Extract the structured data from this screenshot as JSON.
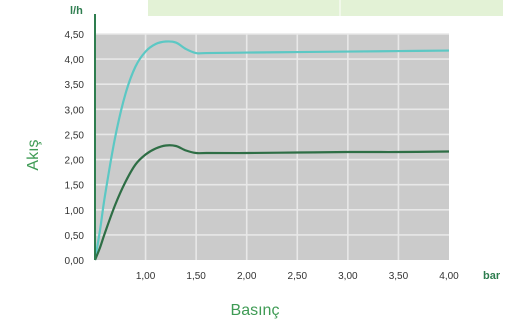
{
  "chart_data": {
    "type": "line",
    "xlabel": "Basınç",
    "ylabel": "Akış",
    "x_unit": "bar",
    "y_unit": "l/h",
    "xlim": [
      0.5,
      4.0
    ],
    "ylim": [
      0,
      4.5
    ],
    "x_ticks": [
      1.0,
      1.5,
      2.0,
      2.5,
      3.0,
      3.5,
      4.0
    ],
    "x_tick_labels": [
      "1,00",
      "1,50",
      "2,00",
      "2,50",
      "3,00",
      "3,50",
      "4,00"
    ],
    "y_ticks": [
      0,
      0.5,
      1.0,
      1.5,
      2.0,
      2.5,
      3.0,
      3.5,
      4.0,
      4.5
    ],
    "y_tick_labels": [
      "0,00",
      "0,50",
      "1,00",
      "1,50",
      "2,00",
      "2,50",
      "3,00",
      "3,50",
      "4,00",
      "4,50"
    ],
    "grid": true,
    "plot_background": "#cbcbcb",
    "grid_color": "#e8e8e8",
    "axis_color": "#2e7d4f",
    "series": [
      {
        "color": "#5cc8c4",
        "x": [
          0.5,
          0.55,
          0.6,
          0.7,
          0.8,
          0.9,
          1.0,
          1.1,
          1.2,
          1.3,
          1.4,
          1.5,
          1.6,
          2.0,
          2.5,
          3.0,
          3.5,
          4.0
        ],
        "y": [
          0.0,
          0.6,
          1.3,
          2.45,
          3.3,
          3.85,
          4.15,
          4.3,
          4.35,
          4.33,
          4.2,
          4.12,
          4.12,
          4.13,
          4.14,
          4.15,
          4.16,
          4.17
        ]
      },
      {
        "color": "#2e6e45",
        "x": [
          0.5,
          0.55,
          0.6,
          0.7,
          0.8,
          0.9,
          1.0,
          1.1,
          1.2,
          1.3,
          1.4,
          1.5,
          1.6,
          2.0,
          2.5,
          3.0,
          3.5,
          4.0
        ],
        "y": [
          0.0,
          0.25,
          0.55,
          1.1,
          1.55,
          1.9,
          2.1,
          2.22,
          2.28,
          2.27,
          2.18,
          2.13,
          2.13,
          2.13,
          2.14,
          2.15,
          2.15,
          2.16
        ]
      }
    ]
  }
}
